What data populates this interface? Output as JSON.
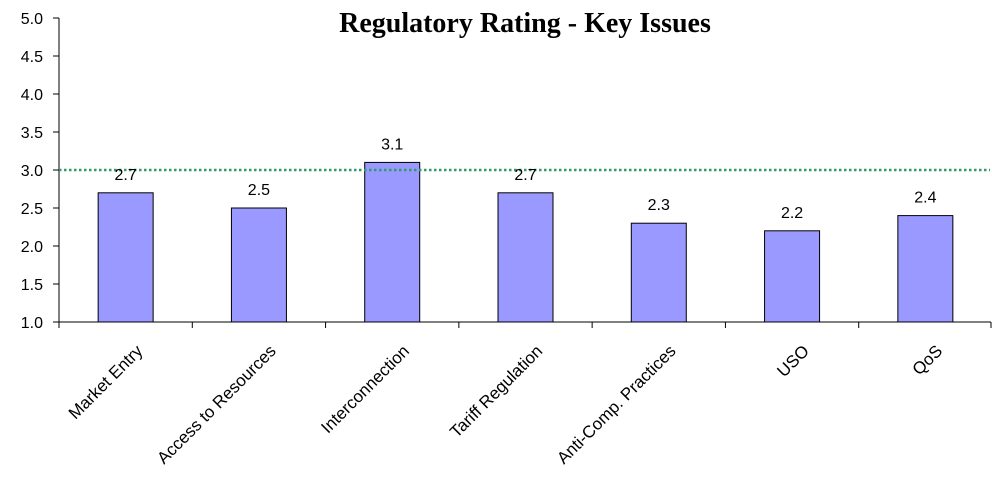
{
  "chart_data": {
    "type": "bar",
    "title": "Regulatory Rating - Key Issues",
    "xlabel": "",
    "ylabel": "",
    "categories": [
      "Market Entry",
      "Access to Resources",
      "Interconnection",
      "Tariff Regulation",
      "Anti-Comp. Practices",
      "USO",
      "QoS"
    ],
    "values": [
      2.7,
      2.5,
      3.1,
      2.7,
      2.3,
      2.2,
      2.4
    ],
    "data_labels": [
      "2.7",
      "2.5",
      "3.1",
      "2.7",
      "2.3",
      "2.2",
      "2.4"
    ],
    "ylim": [
      1.0,
      5.0
    ],
    "yticks": [
      "1.0",
      "1.5",
      "2.0",
      "2.5",
      "3.0",
      "3.5",
      "4.0",
      "4.5",
      "5.0"
    ],
    "reference_line": 3.0,
    "bar_color": "#9999FF",
    "bar_border_color": "#000000",
    "reference_line_color": "#339966",
    "grid": false,
    "legend": "none"
  }
}
